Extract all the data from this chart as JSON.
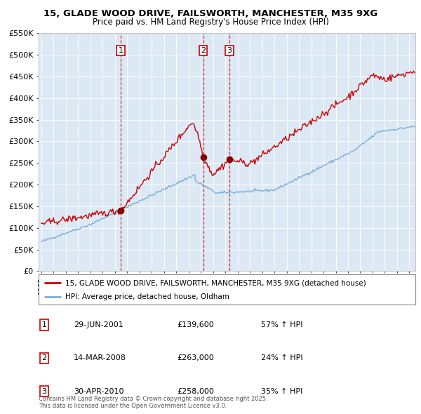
{
  "title": "15, GLADE WOOD DRIVE, FAILSWORTH, MANCHESTER, M35 9XG",
  "subtitle": "Price paid vs. HM Land Registry's House Price Index (HPI)",
  "ylabel_ticks": [
    "£0",
    "£50K",
    "£100K",
    "£150K",
    "£200K",
    "£250K",
    "£300K",
    "£350K",
    "£400K",
    "£450K",
    "£500K",
    "£550K"
  ],
  "ytick_values": [
    0,
    50000,
    100000,
    150000,
    200000,
    250000,
    300000,
    350000,
    400000,
    450000,
    500000,
    550000
  ],
  "ylim": [
    0,
    550000
  ],
  "xlim_start": 1994.8,
  "xlim_end": 2025.5,
  "sales": [
    {
      "num": 1,
      "date_str": "29-JUN-2001",
      "year": 2001.49,
      "price": 139600,
      "hpi_pct": "57% ↑ HPI"
    },
    {
      "num": 2,
      "date_str": "14-MAR-2008",
      "year": 2008.2,
      "price": 263000,
      "hpi_pct": "24% ↑ HPI"
    },
    {
      "num": 3,
      "date_str": "30-APR-2010",
      "year": 2010.33,
      "price": 258000,
      "hpi_pct": "35% ↑ HPI"
    }
  ],
  "red_line_color": "#cc0000",
  "blue_line_color": "#7eadd4",
  "vline_color": "#cc0000",
  "chart_bg_color": "#dce9f5",
  "legend_label_red": "15, GLADE WOOD DRIVE, FAILSWORTH, MANCHESTER, M35 9XG (detached house)",
  "legend_label_blue": "HPI: Average price, detached house, Oldham",
  "footer": "Contains HM Land Registry data © Crown copyright and database right 2025.\nThis data is licensed under the Open Government Licence v3.0.",
  "sale_number_box_color": "#cc0000",
  "background_color": "#ffffff",
  "grid_color": "#ffffff"
}
